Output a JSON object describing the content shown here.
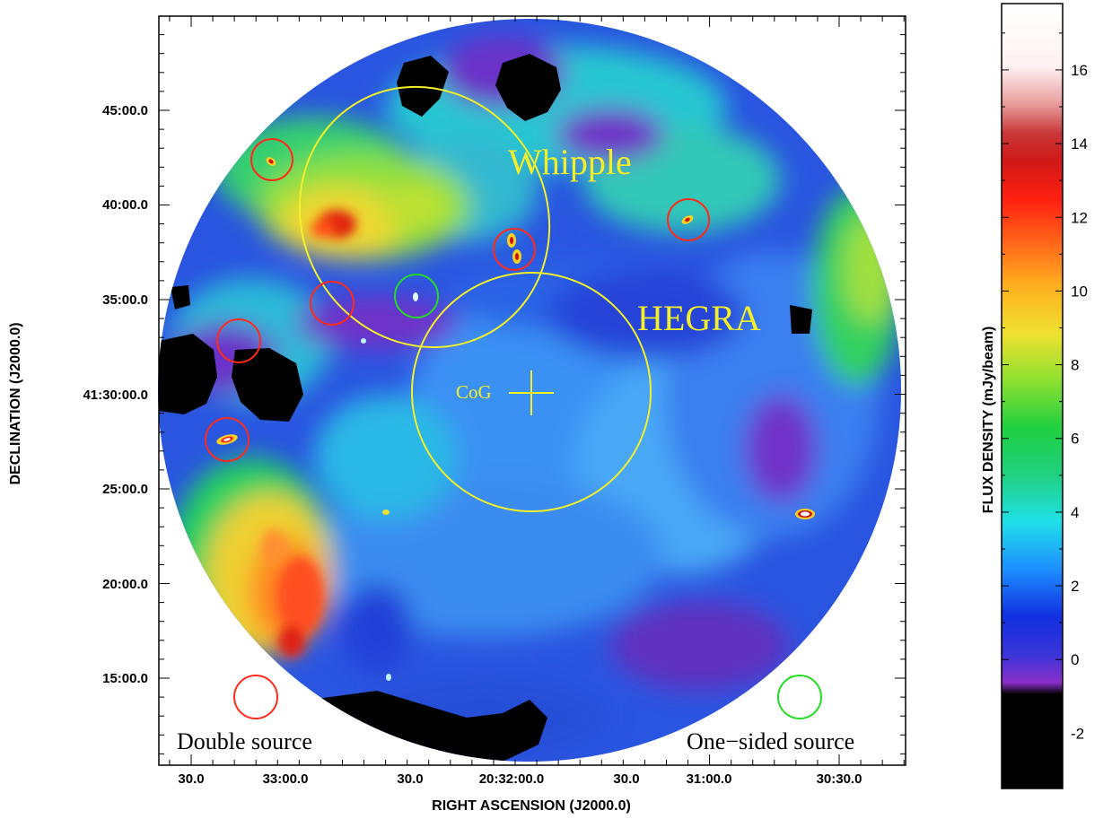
{
  "chart_data": {
    "type": "heatmap",
    "title": "",
    "xlabel": "RIGHT ASCENSION (J2000.0)",
    "ylabel": "DECLINATION (J2000.0)",
    "x_ticks": [
      "30.0",
      "33:00.0",
      "30.0",
      "20:32:00.0",
      "30.0",
      "31:00.0",
      "30:30.0"
    ],
    "y_ticks": [
      "45:00.0",
      "40:00.0",
      "35:00.0",
      "41:30:00.0",
      "25:00.0",
      "20:00.0",
      "15:00.0"
    ],
    "colorbar": {
      "label": "FLUX DENSITY  (mJy/beam)",
      "ticks": [
        "16",
        "14",
        "12",
        "10",
        "8",
        "6",
        "4",
        "2",
        "0",
        "-2"
      ],
      "range": [
        -3.5,
        17.8
      ],
      "colormap": [
        "#000000",
        "#000000",
        "#8b2fc9",
        "#1030e0",
        "#1e90ff",
        "#20e0e8",
        "#20d060",
        "#8ee030",
        "#f0e030",
        "#ff9020",
        "#ff2010",
        "#c81818",
        "#ffffff"
      ]
    },
    "annotations": {
      "whipple": "Whipple",
      "hegra": "HEGRA",
      "cog": "CoG"
    },
    "legend": {
      "double_source": "Double source",
      "one_sided_source": "One−sided source"
    },
    "marker_colors": {
      "double": "#ff2a1a",
      "one_sided": "#22dd22",
      "error_region": "#f3f02a"
    },
    "grid": false
  }
}
